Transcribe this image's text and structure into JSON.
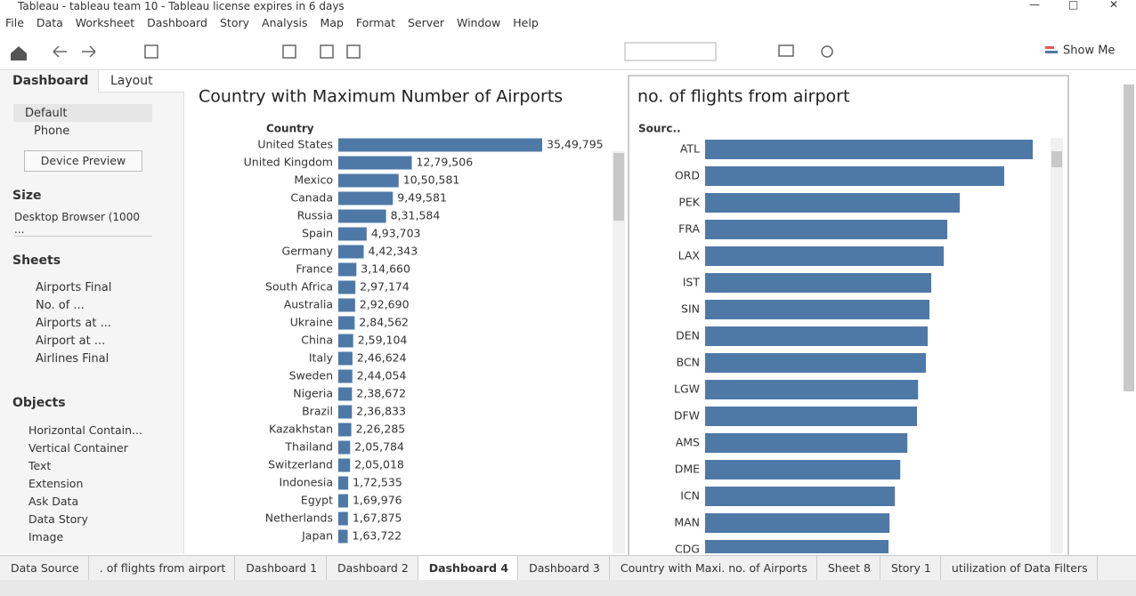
{
  "window": {
    "title": "Tableau - tableau team 10 - Tableau license expires in 6 days"
  },
  "menu": [
    "File",
    "Data",
    "Worksheet",
    "Dashboard",
    "Story",
    "Analysis",
    "Map",
    "Format",
    "Server",
    "Window",
    "Help"
  ],
  "toolbar": {
    "show_me": "Show Me"
  },
  "side_panel": {
    "tabs": [
      "Dashboard",
      "Layout"
    ],
    "devices": [
      "Default",
      "Phone"
    ],
    "device_preview": "Device Preview",
    "size_title": "Size",
    "size_value": "Desktop Browser (1000 ...",
    "sheets_title": "Sheets",
    "sheets": [
      "Airports Final",
      "No. of ...",
      "Airports at ...",
      "Airport at ...",
      "Airlines Final"
    ],
    "objects_title": "Objects",
    "objects": [
      "Horizontal Contain...",
      "Vertical Container",
      "Text",
      "Extension",
      "Ask Data",
      "Data Story",
      "Image"
    ]
  },
  "chart_data": [
    {
      "type": "bar",
      "title": "Country with Maximum Number of Airports",
      "axis_label": "Country",
      "color": "#4e79a7",
      "categories": [
        "United States",
        "United Kingdom",
        "Mexico",
        "Canada",
        "Russia",
        "Spain",
        "Germany",
        "France",
        "South Africa",
        "Australia",
        "Ukraine",
        "China",
        "Italy",
        "Sweden",
        "Nigeria",
        "Brazil",
        "Kazakhstan",
        "Thailand",
        "Switzerland",
        "Indonesia",
        "Egypt",
        "Netherlands",
        "Japan"
      ],
      "values": [
        3549795,
        1279506,
        1050581,
        949581,
        831584,
        493703,
        442343,
        314660,
        297174,
        292690,
        284562,
        259104,
        246624,
        244054,
        238672,
        236833,
        226285,
        205784,
        205018,
        172535,
        169976,
        167875,
        163722
      ],
      "value_labels": [
        "35,49,795",
        "12,79,506",
        "10,50,581",
        "9,49,581",
        "8,31,584",
        "4,93,703",
        "4,42,343",
        "3,14,660",
        "2,97,174",
        "2,92,690",
        "2,84,562",
        "2,59,104",
        "2,46,624",
        "2,44,054",
        "2,38,672",
        "2,36,833",
        "2,26,285",
        "2,05,784",
        "2,05,018",
        "1,72,535",
        "1,69,976",
        "1,67,875",
        "1,63,722"
      ]
    },
    {
      "type": "bar",
      "title": "no. of flights from airport",
      "axis_label": "Sourc..",
      "color": "#4e79a7",
      "categories": [
        "ATL",
        "ORD",
        "PEK",
        "FRA",
        "LAX",
        "IST",
        "SIN",
        "DEN",
        "BCN",
        "LGW",
        "DFW",
        "AMS",
        "DME",
        "ICN",
        "MAN",
        "CDG"
      ],
      "values": [
        920,
        840,
        715,
        680,
        670,
        635,
        630,
        625,
        620,
        598,
        595,
        568,
        548,
        533,
        518,
        515
      ]
    }
  ],
  "tabs": [
    "Data Source",
    ". of flights from airport",
    "Dashboard 1",
    "Dashboard 2",
    "Dashboard 4",
    "Dashboard 3",
    "Country with Maxi. no. of Airports",
    "Sheet 8",
    "Story 1",
    "utilization of Data Filters"
  ]
}
